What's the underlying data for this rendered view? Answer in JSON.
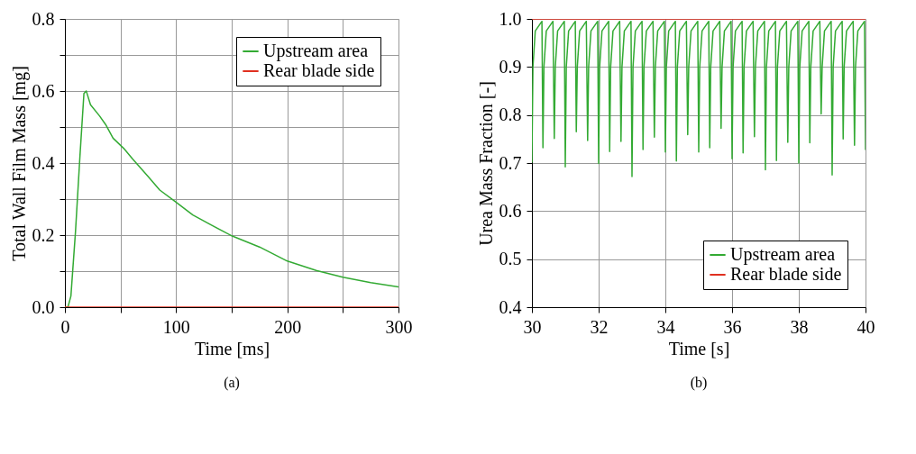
{
  "chart_data": [
    {
      "type": "line",
      "xlabel": "Time [ms]",
      "ylabel": "Total Wall Film Mass [mg]",
      "annotations": [
        "(a)"
      ],
      "xlim": [
        0,
        300
      ],
      "xticks": [
        0,
        {
          "value": 50,
          "label": null
        },
        100,
        {
          "value": 150,
          "label": null
        },
        200,
        {
          "value": 250,
          "label": null
        },
        300
      ],
      "ylim": [
        0,
        0.8
      ],
      "yticks": [
        {
          "value": 0,
          "label": "0.0"
        },
        {
          "value": 0.1,
          "label": null
        },
        0.2,
        {
          "value": 0.3,
          "label": null
        },
        0.4,
        {
          "value": 0.5,
          "label": null
        },
        0.6,
        {
          "value": 0.7,
          "label": null
        },
        0.8
      ],
      "grid": true,
      "legend": "top right",
      "line_style": "solid",
      "series": [
        {
          "name": "Upstream area",
          "color": "#33aa33",
          "x": [
            0,
            2.7,
            5.4,
            9.5,
            13.5,
            17.1,
            19.2,
            20.3,
            23,
            31.1,
            36.6,
            43.3,
            52.8,
            60.9,
            74.5,
            85.3,
            98.8,
            115,
            131,
            150,
            175,
            200,
            226,
            250,
            275,
            300
          ],
          "values": [
            0,
            0,
            0.031,
            0.209,
            0.418,
            0.593,
            0.6,
            0.589,
            0.562,
            0.531,
            0.507,
            0.469,
            0.441,
            0.411,
            0.364,
            0.325,
            0.294,
            0.256,
            0.229,
            0.198,
            0.167,
            0.128,
            0.102,
            0.083,
            0.068,
            0.056
          ]
        },
        {
          "name": "Rear blade side",
          "color": "#e03020",
          "x": [
            0,
            300
          ],
          "values": [
            0,
            0
          ]
        }
      ]
    },
    {
      "type": "line",
      "xlabel": "Time [s]",
      "ylabel": "Urea Mass Fraction [-]",
      "annotations": [
        "(b)"
      ],
      "xlim": [
        30,
        40
      ],
      "xticks": [
        30,
        32,
        34,
        36,
        38,
        40
      ],
      "ylim": [
        0.4,
        1.0
      ],
      "yticks": [
        0.4,
        0.5,
        0.6,
        0.7,
        0.8,
        0.9,
        {
          "value": 1.0,
          "label": "1.0"
        }
      ],
      "grid": true,
      "legend": "bottom right",
      "line_style": "solid",
      "series": [
        {
          "name": "Upstream area",
          "color": "#33aa33",
          "x": [
            30.0,
            30.03,
            30.1,
            30.3,
            30.33,
            30.36,
            30.43,
            30.63,
            30.67,
            30.7,
            30.77,
            30.97,
            31.0,
            31.03,
            31.1,
            31.3,
            31.33,
            31.36,
            31.43,
            31.63,
            31.67,
            31.7,
            31.77,
            31.97,
            32.0,
            32.03,
            32.1,
            32.3,
            32.33,
            32.36,
            32.43,
            32.63,
            32.67,
            32.7,
            32.77,
            32.97,
            33.0,
            33.03,
            33.1,
            33.3,
            33.33,
            33.36,
            33.43,
            33.63,
            33.67,
            33.7,
            33.77,
            33.97,
            34.0,
            34.03,
            34.1,
            34.3,
            34.33,
            34.36,
            34.43,
            34.63,
            34.67,
            34.7,
            34.77,
            34.97,
            35.0,
            35.03,
            35.1,
            35.3,
            35.33,
            35.36,
            35.43,
            35.63,
            35.67,
            35.7,
            35.77,
            35.97,
            36.0,
            36.03,
            36.1,
            36.3,
            36.33,
            36.36,
            36.43,
            36.63,
            36.67,
            36.7,
            36.77,
            36.97,
            37.0,
            37.03,
            37.1,
            37.3,
            37.33,
            37.36,
            37.43,
            37.63,
            37.67,
            37.7,
            37.77,
            37.97,
            38.0,
            38.03,
            38.1,
            38.3,
            38.33,
            38.36,
            38.43,
            38.63,
            38.67,
            38.7,
            38.77,
            38.97,
            39.0,
            39.03,
            39.1,
            39.3,
            39.33,
            39.36,
            39.43,
            39.63,
            39.67,
            39.7,
            39.77,
            39.97,
            40.0
          ],
          "values": [
            0.701,
            0.9,
            0.975,
            0.995,
            0.732,
            0.9,
            0.975,
            0.995,
            0.751,
            0.9,
            0.975,
            0.995,
            0.692,
            0.9,
            0.975,
            0.995,
            0.765,
            0.9,
            0.975,
            0.995,
            0.747,
            0.9,
            0.975,
            0.995,
            0.699,
            0.9,
            0.975,
            0.995,
            0.724,
            0.9,
            0.975,
            0.995,
            0.745,
            0.9,
            0.975,
            0.995,
            0.672,
            0.9,
            0.975,
            0.995,
            0.728,
            0.9,
            0.975,
            0.995,
            0.754,
            0.9,
            0.975,
            0.995,
            0.723,
            0.9,
            0.975,
            0.995,
            0.704,
            0.9,
            0.975,
            0.995,
            0.759,
            0.9,
            0.975,
            0.995,
            0.723,
            0.9,
            0.975,
            0.995,
            0.732,
            0.9,
            0.975,
            0.995,
            0.772,
            0.9,
            0.975,
            0.995,
            0.709,
            0.9,
            0.975,
            0.995,
            0.721,
            0.9,
            0.975,
            0.995,
            0.755,
            0.9,
            0.975,
            0.995,
            0.686,
            0.9,
            0.975,
            0.995,
            0.705,
            0.9,
            0.975,
            0.995,
            0.743,
            0.9,
            0.975,
            0.995,
            0.7,
            0.9,
            0.975,
            0.995,
            0.742,
            0.9,
            0.975,
            0.995,
            0.802,
            0.9,
            0.975,
            0.995,
            0.675,
            0.9,
            0.975,
            0.995,
            0.75,
            0.9,
            0.975,
            0.995,
            0.737,
            0.9,
            0.975,
            0.995,
            0.727
          ]
        },
        {
          "name": "Rear blade side",
          "color": "#e03020",
          "x": [
            30,
            40
          ],
          "values": [
            1.0,
            1.0
          ]
        }
      ]
    }
  ]
}
